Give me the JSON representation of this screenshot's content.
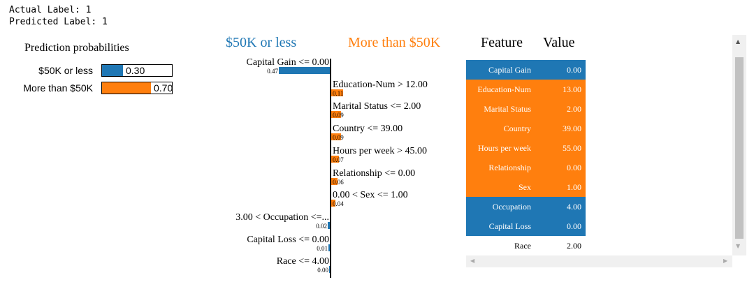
{
  "header": {
    "actual_label": "Actual Label: 1",
    "predicted_label": "Predicted Label: 1"
  },
  "probabilities": {
    "title": "Prediction probabilities",
    "classes": [
      {
        "name": "$50K or less",
        "value_text": "0.30",
        "value": 0.3,
        "color": "#1f77b4"
      },
      {
        "name": "More than $50K",
        "value_text": "0.70",
        "value": 0.7,
        "color": "#ff7f0e"
      }
    ]
  },
  "explanation": {
    "neg_title": "$50K or less",
    "pos_title": "More than $50K",
    "neg_color": "#1f77b4",
    "pos_color": "#ff7f0e",
    "features": [
      {
        "name": "Capital Gain <= 0.00",
        "value": 0.47,
        "value_text": "0.47",
        "side": "neg"
      },
      {
        "name": "Education-Num > 12.00",
        "value": 0.11,
        "value_text": "0.11",
        "side": "pos"
      },
      {
        "name": "Marital Status <= 2.00",
        "value": 0.09,
        "value_text": "0.09",
        "side": "pos"
      },
      {
        "name": "Country <= 39.00",
        "value": 0.09,
        "value_text": "0.09",
        "side": "pos"
      },
      {
        "name": "Hours per week > 45.00",
        "value": 0.07,
        "value_text": "0.07",
        "side": "pos"
      },
      {
        "name": "Relationship <= 0.00",
        "value": 0.06,
        "value_text": "0.06",
        "side": "pos"
      },
      {
        "name": "0.00 < Sex <= 1.00",
        "value": 0.04,
        "value_text": "0.04",
        "side": "pos"
      },
      {
        "name": "3.00 < Occupation <=...",
        "value": 0.02,
        "value_text": "0.02",
        "side": "neg"
      },
      {
        "name": "Capital Loss <= 0.00",
        "value": 0.01,
        "value_text": "0.01",
        "side": "neg"
      },
      {
        "name": "Race <= 4.00",
        "value": 0.0,
        "value_text": "0.00",
        "side": "neg"
      }
    ]
  },
  "table": {
    "col_feature": "Feature",
    "col_value": "Value",
    "rows": [
      {
        "feature": "Capital Gain",
        "value": "0.00",
        "color": "#1f77b4"
      },
      {
        "feature": "Education-Num",
        "value": "13.00",
        "color": "#ff7f0e"
      },
      {
        "feature": "Marital Status",
        "value": "2.00",
        "color": "#ff7f0e"
      },
      {
        "feature": "Country",
        "value": "39.00",
        "color": "#ff7f0e"
      },
      {
        "feature": "Hours per week",
        "value": "55.00",
        "color": "#ff7f0e"
      },
      {
        "feature": "Relationship",
        "value": "0.00",
        "color": "#ff7f0e"
      },
      {
        "feature": "Sex",
        "value": "1.00",
        "color": "#ff7f0e"
      },
      {
        "feature": "Occupation",
        "value": "4.00",
        "color": "#1f77b4"
      },
      {
        "feature": "Capital Loss",
        "value": "0.00",
        "color": "#1f77b4"
      },
      {
        "feature": "Race",
        "value": "2.00",
        "color": "#ffffff"
      }
    ]
  },
  "scrollbar": {
    "up_icon": "▲",
    "down_icon": "▼",
    "left_icon": "◀",
    "right_icon": "▶"
  }
}
